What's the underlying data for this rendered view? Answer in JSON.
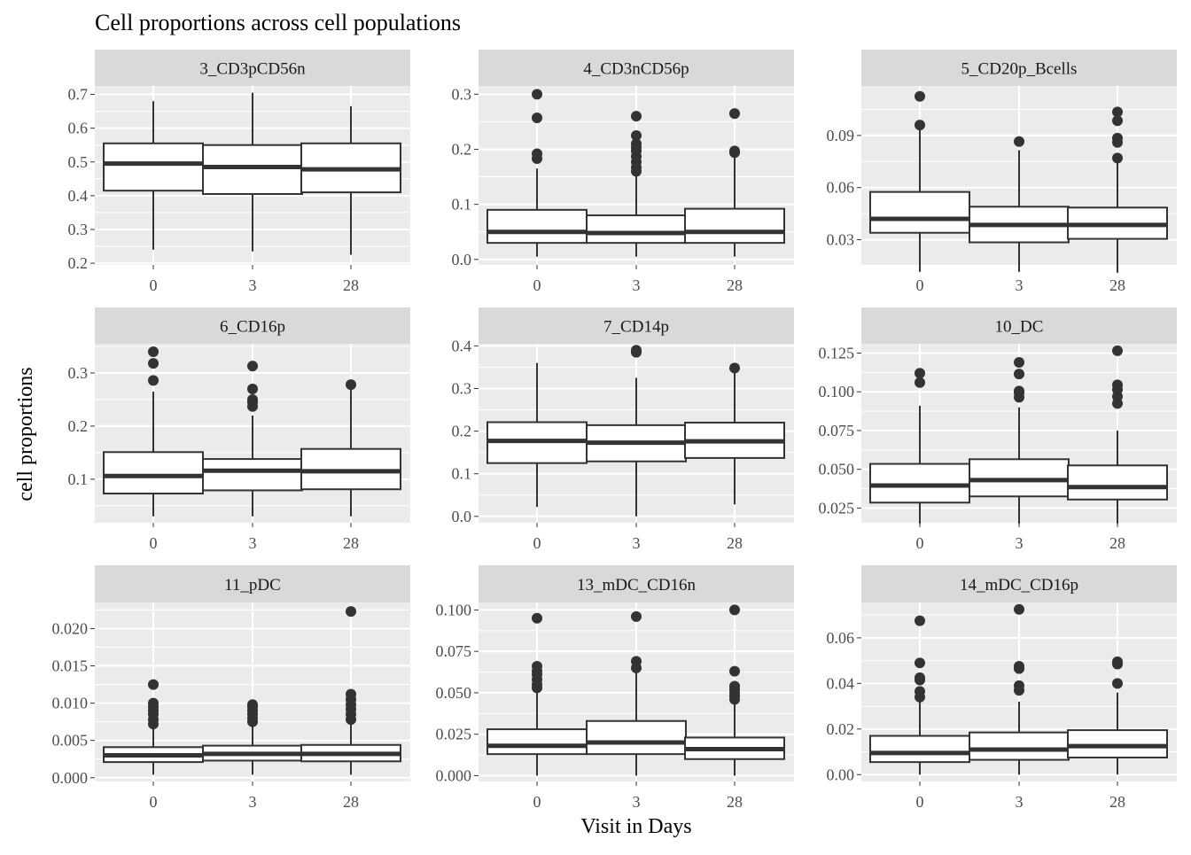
{
  "chart_data": {
    "type": "box",
    "title": "Cell proportions across cell populations",
    "xlabel": "Visit in Days",
    "ylabel": "cell proportions",
    "categories": [
      "0",
      "3",
      "28"
    ],
    "grid": true,
    "legend": "none",
    "colors": {
      "panel_bg": "#ebebeb",
      "strip_bg": "#d9d9d9",
      "grid": "#ffffff",
      "box_fill": "#ffffff",
      "stroke": "#333333",
      "outlier": "#333333"
    },
    "panels": [
      {
        "name": "3_CD3pCD56n",
        "ylim": [
          0.195,
          0.725
        ],
        "yticks": [
          0.2,
          0.3,
          0.4,
          0.5,
          0.6,
          0.7
        ],
        "ytick_labels": [
          "0.2",
          "0.3",
          "0.4",
          "0.5",
          "0.6",
          "0.7"
        ],
        "boxes": [
          {
            "category": "0",
            "whisker_low": 0.24,
            "q1": 0.415,
            "median": 0.495,
            "q3": 0.555,
            "whisker_high": 0.68,
            "outliers": []
          },
          {
            "category": "3",
            "whisker_low": 0.235,
            "q1": 0.405,
            "median": 0.485,
            "q3": 0.55,
            "whisker_high": 0.705,
            "outliers": []
          },
          {
            "category": "28",
            "whisker_low": 0.225,
            "q1": 0.41,
            "median": 0.478,
            "q3": 0.555,
            "whisker_high": 0.665,
            "outliers": []
          }
        ]
      },
      {
        "name": "4_CD3nCD56p",
        "ylim": [
          -0.01,
          0.315
        ],
        "yticks": [
          0.0,
          0.1,
          0.2,
          0.3
        ],
        "ytick_labels": [
          "0.0",
          "0.1",
          "0.2",
          "0.3"
        ],
        "boxes": [
          {
            "category": "0",
            "whisker_low": 0.005,
            "q1": 0.03,
            "median": 0.05,
            "q3": 0.09,
            "whisker_high": 0.165,
            "outliers": [
              0.183,
              0.192,
              0.257,
              0.3
            ]
          },
          {
            "category": "3",
            "whisker_low": 0.005,
            "q1": 0.03,
            "median": 0.048,
            "q3": 0.08,
            "whisker_high": 0.155,
            "outliers": [
              0.16,
              0.167,
              0.177,
              0.187,
              0.197,
              0.203,
              0.21,
              0.225,
              0.26
            ]
          },
          {
            "category": "28",
            "whisker_low": 0.005,
            "q1": 0.03,
            "median": 0.05,
            "q3": 0.092,
            "whisker_high": 0.19,
            "outliers": [
              0.194,
              0.197,
              0.265
            ]
          }
        ]
      },
      {
        "name": "5_CD20p_Bcells",
        "ylim": [
          0.0155,
          0.1185
        ],
        "yticks": [
          0.03,
          0.06,
          0.09
        ],
        "ytick_labels": [
          "0.03",
          "0.06",
          "0.09"
        ],
        "boxes": [
          {
            "category": "0",
            "whisker_low": 0.0115,
            "q1": 0.034,
            "median": 0.042,
            "q3": 0.0575,
            "whisker_high": 0.0935,
            "outliers": [
              0.096,
              0.1125
            ]
          },
          {
            "category": "3",
            "whisker_low": 0.0115,
            "q1": 0.0285,
            "median": 0.0385,
            "q3": 0.049,
            "whisker_high": 0.0815,
            "outliers": [
              0.0865
            ]
          },
          {
            "category": "28",
            "whisker_low": 0.011,
            "q1": 0.0305,
            "median": 0.0385,
            "q3": 0.0485,
            "whisker_high": 0.0755,
            "outliers": [
              0.077,
              0.086,
              0.0885,
              0.0985,
              0.1035
            ]
          }
        ]
      },
      {
        "name": "6_CD16p",
        "ylim": [
          0.018,
          0.355
        ],
        "yticks": [
          0.1,
          0.2,
          0.3
        ],
        "ytick_labels": [
          "0.1",
          "0.2",
          "0.3"
        ],
        "boxes": [
          {
            "category": "0",
            "whisker_low": 0.03,
            "q1": 0.073,
            "median": 0.106,
            "q3": 0.151,
            "whisker_high": 0.265,
            "outliers": [
              0.286,
              0.318,
              0.34
            ]
          },
          {
            "category": "3",
            "whisker_low": 0.03,
            "q1": 0.079,
            "median": 0.116,
            "q3": 0.138,
            "whisker_high": 0.22,
            "outliers": [
              0.237,
              0.245,
              0.25,
              0.27,
              0.313
            ]
          },
          {
            "category": "28",
            "whisker_low": 0.03,
            "q1": 0.081,
            "median": 0.115,
            "q3": 0.157,
            "whisker_high": 0.27,
            "outliers": [
              0.278
            ]
          }
        ]
      },
      {
        "name": "7_CD14p",
        "ylim": [
          -0.015,
          0.405
        ],
        "yticks": [
          0.0,
          0.1,
          0.2,
          0.3,
          0.4
        ],
        "ytick_labels": [
          "0.0",
          "0.1",
          "0.2",
          "0.3",
          "0.4"
        ],
        "boxes": [
          {
            "category": "0",
            "whisker_low": 0.022,
            "q1": 0.125,
            "median": 0.177,
            "q3": 0.221,
            "whisker_high": 0.36,
            "outliers": []
          },
          {
            "category": "3",
            "whisker_low": 0.0,
            "q1": 0.129,
            "median": 0.173,
            "q3": 0.214,
            "whisker_high": 0.325,
            "outliers": [
              0.385,
              0.39
            ]
          },
          {
            "category": "28",
            "whisker_low": 0.028,
            "q1": 0.137,
            "median": 0.176,
            "q3": 0.22,
            "whisker_high": 0.34,
            "outliers": [
              0.348
            ]
          }
        ]
      },
      {
        "name": "10_DC",
        "ylim": [
          0.0155,
          0.131
        ],
        "yticks": [
          0.025,
          0.05,
          0.075,
          0.1,
          0.125
        ],
        "ytick_labels": [
          "0.025",
          "0.050",
          "0.075",
          "0.100",
          "0.125"
        ],
        "boxes": [
          {
            "category": "0",
            "whisker_low": 0.015,
            "q1": 0.0285,
            "median": 0.0395,
            "q3": 0.0535,
            "whisker_high": 0.091,
            "outliers": [
              0.106,
              0.112
            ]
          },
          {
            "category": "3",
            "whisker_low": 0.015,
            "q1": 0.0325,
            "median": 0.043,
            "q3": 0.0565,
            "whisker_high": 0.09,
            "outliers": [
              0.0965,
              0.0995,
              0.1005,
              0.1115,
              0.119
            ]
          },
          {
            "category": "28",
            "whisker_low": 0.015,
            "q1": 0.0305,
            "median": 0.0385,
            "q3": 0.0525,
            "whisker_high": 0.075,
            "outliers": [
              0.0925,
              0.097,
              0.1015,
              0.1045,
              0.1265
            ]
          }
        ]
      },
      {
        "name": "11_pDC",
        "ylim": [
          -0.0005,
          0.0235
        ],
        "yticks": [
          0.0,
          0.005,
          0.01,
          0.015,
          0.02
        ],
        "ytick_labels": [
          "0.000",
          "0.005",
          "0.010",
          "0.015",
          "0.020"
        ],
        "boxes": [
          {
            "category": "0",
            "whisker_low": 0.0004,
            "q1": 0.0021,
            "median": 0.003,
            "q3": 0.0041,
            "whisker_high": 0.0068,
            "outliers": [
              0.0072,
              0.0078,
              0.0085,
              0.009,
              0.0095,
              0.01,
              0.0125
            ]
          },
          {
            "category": "3",
            "whisker_low": 0.0004,
            "q1": 0.0023,
            "median": 0.0032,
            "q3": 0.0043,
            "whisker_high": 0.0072,
            "outliers": [
              0.0075,
              0.008,
              0.0085,
              0.009,
              0.0095,
              0.0098
            ]
          },
          {
            "category": "28",
            "whisker_low": 0.0004,
            "q1": 0.0022,
            "median": 0.0032,
            "q3": 0.0044,
            "whisker_high": 0.0075,
            "outliers": [
              0.0078,
              0.0085,
              0.0092,
              0.0098,
              0.0105,
              0.0112,
              0.0223
            ]
          }
        ]
      },
      {
        "name": "13_mDC_CD16n",
        "ylim": [
          -0.0035,
          0.1045
        ],
        "yticks": [
          0.0,
          0.025,
          0.05,
          0.075,
          0.1
        ],
        "ytick_labels": [
          "0.000",
          "0.025",
          "0.050",
          "0.075",
          "0.100"
        ],
        "boxes": [
          {
            "category": "0",
            "whisker_low": 0.0,
            "q1": 0.013,
            "median": 0.018,
            "q3": 0.028,
            "whisker_high": 0.05,
            "outliers": [
              0.053,
              0.055,
              0.058,
              0.061,
              0.063,
              0.066,
              0.095
            ]
          },
          {
            "category": "3",
            "whisker_low": 0.0,
            "q1": 0.013,
            "median": 0.02,
            "q3": 0.033,
            "whisker_high": 0.062,
            "outliers": [
              0.065,
              0.069,
              0.096
            ]
          },
          {
            "category": "28",
            "whisker_low": 0.0,
            "q1": 0.01,
            "median": 0.016,
            "q3": 0.023,
            "whisker_high": 0.044,
            "outliers": [
              0.046,
              0.048,
              0.05,
              0.052,
              0.054,
              0.063,
              0.1
            ]
          }
        ]
      },
      {
        "name": "14_mDC_CD16p",
        "ylim": [
          -0.003,
          0.0755
        ],
        "yticks": [
          0.0,
          0.02,
          0.04,
          0.06
        ],
        "ytick_labels": [
          "0.00",
          "0.02",
          "0.04",
          "0.06"
        ],
        "boxes": [
          {
            "category": "0",
            "whisker_low": 0.0,
            "q1": 0.0055,
            "median": 0.0095,
            "q3": 0.017,
            "whisker_high": 0.032,
            "outliers": [
              0.034,
              0.0365,
              0.0415,
              0.0425,
              0.049,
              0.0675
            ]
          },
          {
            "category": "3",
            "whisker_low": 0.0,
            "q1": 0.0065,
            "median": 0.011,
            "q3": 0.0185,
            "whisker_high": 0.032,
            "outliers": [
              0.037,
              0.039,
              0.0465,
              0.0475,
              0.0725
            ]
          },
          {
            "category": "28",
            "whisker_low": 0.0,
            "q1": 0.0075,
            "median": 0.0125,
            "q3": 0.0195,
            "whisker_high": 0.036,
            "outliers": [
              0.04,
              0.0485,
              0.0495
            ]
          }
        ]
      }
    ]
  }
}
